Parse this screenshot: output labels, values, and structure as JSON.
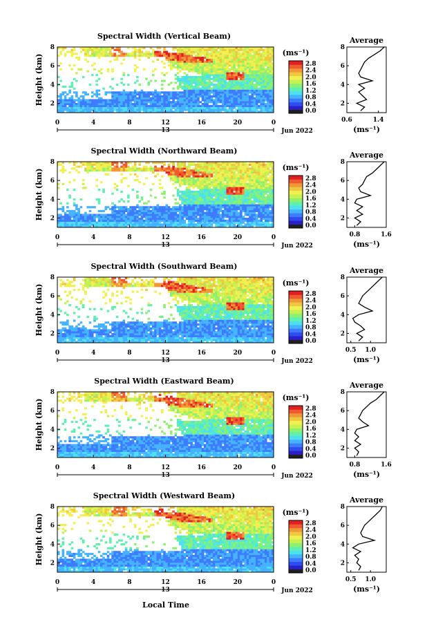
{
  "figure": {
    "date_label": "Jun 2022",
    "day_label": "13",
    "xlabel": "Local Time",
    "ylabel": "Height (km)",
    "unit_label": "(ms⁻¹)",
    "average_title": "Average",
    "x_ticks": [
      "0",
      "4",
      "8",
      "12",
      "16",
      "20",
      "0"
    ],
    "y_ticks": [
      "2",
      "4",
      "6",
      "8"
    ],
    "colorbar_ticks": [
      "0.0",
      "0.4",
      "0.8",
      "1.2",
      "1.6",
      "2.0",
      "2.4",
      "2.8"
    ],
    "colorbar_colors": [
      "#202020",
      "#2a1fc8",
      "#2f4cf0",
      "#3d7cff",
      "#45b3ff",
      "#4fe0f0",
      "#5ff0b0",
      "#8ef070",
      "#c8f050",
      "#f0f050",
      "#f0c840",
      "#f09838",
      "#f05a30",
      "#e02020"
    ]
  },
  "chart_data": [
    {
      "type": "heatmap",
      "title": "Spectral Width (Vertical Beam)",
      "xlabel": "Local Time",
      "ylabel": "Height (km)",
      "xlim": [
        0,
        24
      ],
      "ylim": [
        1,
        8
      ],
      "colorbar_range": [
        0.0,
        2.8
      ],
      "avg": {
        "xticks": [
          "0.6",
          "1.4"
        ],
        "xlim": [
          0.6,
          1.6
        ],
        "ylim": [
          1,
          8
        ],
        "profile": [
          [
            0.95,
            1.2
          ],
          [
            1.05,
            1.6
          ],
          [
            0.85,
            2.0
          ],
          [
            1.1,
            2.4
          ],
          [
            1.0,
            2.8
          ],
          [
            0.9,
            3.2
          ],
          [
            1.05,
            3.6
          ],
          [
            0.9,
            4.0
          ],
          [
            1.25,
            4.4
          ],
          [
            0.95,
            4.8
          ],
          [
            0.9,
            5.2
          ],
          [
            0.95,
            5.6
          ],
          [
            1.0,
            6.0
          ],
          [
            1.05,
            6.4
          ],
          [
            1.15,
            6.8
          ],
          [
            1.3,
            7.2
          ],
          [
            1.45,
            7.6
          ],
          [
            1.55,
            8.0
          ]
        ]
      }
    },
    {
      "type": "heatmap",
      "title": "Spectral Width (Northward Beam)",
      "xlabel": "Local Time",
      "ylabel": "Height (km)",
      "xlim": [
        0,
        24
      ],
      "ylim": [
        1,
        8
      ],
      "colorbar_range": [
        0.0,
        2.8
      ],
      "avg": {
        "xticks": [
          "0.8",
          "1.6"
        ],
        "xlim": [
          0.6,
          1.6
        ],
        "ylim": [
          1,
          8
        ],
        "profile": [
          [
            0.85,
            1.2
          ],
          [
            0.95,
            1.6
          ],
          [
            0.8,
            2.0
          ],
          [
            1.0,
            2.4
          ],
          [
            0.85,
            2.8
          ],
          [
            1.0,
            3.2
          ],
          [
            0.8,
            3.6
          ],
          [
            0.85,
            4.0
          ],
          [
            1.2,
            4.4
          ],
          [
            0.95,
            4.8
          ],
          [
            0.9,
            5.2
          ],
          [
            1.0,
            5.6
          ],
          [
            1.05,
            6.0
          ],
          [
            1.1,
            6.4
          ],
          [
            1.25,
            6.8
          ],
          [
            1.35,
            7.2
          ],
          [
            1.45,
            7.6
          ],
          [
            1.55,
            8.0
          ]
        ]
      }
    },
    {
      "type": "heatmap",
      "title": "Spectral Width (Southward Beam)",
      "xlabel": "Local Time",
      "ylabel": "Height (km)",
      "xlim": [
        0,
        24
      ],
      "ylim": [
        1,
        8
      ],
      "colorbar_range": [
        0.0,
        2.8
      ],
      "avg": {
        "xticks": [
          "0.5",
          "1.0"
        ],
        "xlim": [
          0.4,
          1.4
        ],
        "ylim": [
          1,
          8
        ],
        "profile": [
          [
            0.7,
            1.2
          ],
          [
            0.8,
            1.6
          ],
          [
            0.65,
            2.0
          ],
          [
            0.85,
            2.4
          ],
          [
            0.75,
            2.8
          ],
          [
            0.6,
            3.2
          ],
          [
            0.55,
            3.6
          ],
          [
            0.7,
            4.0
          ],
          [
            1.05,
            4.4
          ],
          [
            0.85,
            4.8
          ],
          [
            0.7,
            5.2
          ],
          [
            0.75,
            5.6
          ],
          [
            0.8,
            6.0
          ],
          [
            0.9,
            6.4
          ],
          [
            1.0,
            6.8
          ],
          [
            1.1,
            7.2
          ],
          [
            1.2,
            7.6
          ],
          [
            1.3,
            8.0
          ]
        ]
      }
    },
    {
      "type": "heatmap",
      "title": "Spectral Width (Eastward Beam)",
      "xlabel": "Local Time",
      "ylabel": "Height (km)",
      "xlim": [
        0,
        24
      ],
      "ylim": [
        1,
        8
      ],
      "colorbar_range": [
        0.0,
        2.8
      ],
      "avg": {
        "xticks": [
          "0.8",
          "1.6"
        ],
        "xlim": [
          0.6,
          1.6
        ],
        "ylim": [
          1,
          8
        ],
        "profile": [
          [
            0.85,
            1.2
          ],
          [
            0.9,
            1.6
          ],
          [
            0.8,
            2.0
          ],
          [
            0.95,
            2.4
          ],
          [
            0.8,
            2.8
          ],
          [
            0.9,
            3.2
          ],
          [
            0.8,
            3.6
          ],
          [
            0.85,
            4.0
          ],
          [
            1.15,
            4.4
          ],
          [
            1.0,
            4.8
          ],
          [
            0.9,
            5.2
          ],
          [
            0.95,
            5.6
          ],
          [
            1.0,
            6.0
          ],
          [
            1.1,
            6.4
          ],
          [
            1.2,
            6.8
          ],
          [
            1.35,
            7.2
          ],
          [
            1.45,
            7.6
          ],
          [
            1.55,
            8.0
          ]
        ]
      }
    },
    {
      "type": "heatmap",
      "title": "Spectral Width (Westward Beam)",
      "xlabel": "Local Time",
      "ylabel": "Height (km)",
      "xlim": [
        0,
        24
      ],
      "ylim": [
        1,
        8
      ],
      "colorbar_range": [
        0.0,
        2.8
      ],
      "avg": {
        "xticks": [
          "0.5",
          "1.0"
        ],
        "xlim": [
          0.4,
          1.4
        ],
        "ylim": [
          1,
          8
        ],
        "profile": [
          [
            0.7,
            1.2
          ],
          [
            0.75,
            1.6
          ],
          [
            0.65,
            2.0
          ],
          [
            0.7,
            2.4
          ],
          [
            0.6,
            2.8
          ],
          [
            0.75,
            3.2
          ],
          [
            0.55,
            3.6
          ],
          [
            0.7,
            4.0
          ],
          [
            1.1,
            4.4
          ],
          [
            0.8,
            4.8
          ],
          [
            0.75,
            5.2
          ],
          [
            0.8,
            5.6
          ],
          [
            0.85,
            6.0
          ],
          [
            0.95,
            6.4
          ],
          [
            1.05,
            6.8
          ],
          [
            1.15,
            7.2
          ],
          [
            1.25,
            7.6
          ],
          [
            1.3,
            8.0
          ]
        ]
      }
    }
  ]
}
